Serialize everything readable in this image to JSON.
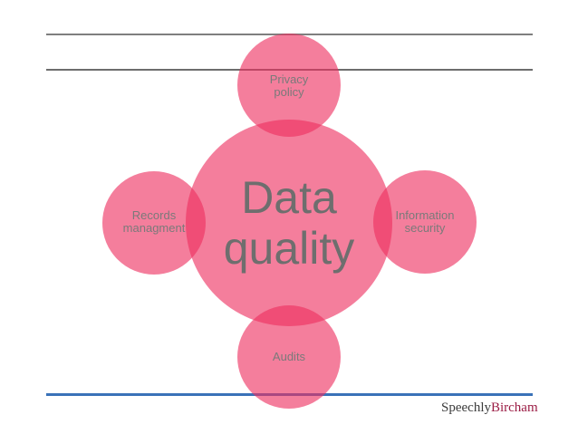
{
  "diagram": {
    "center": {
      "line1": "Data",
      "line2": "quality"
    },
    "nodes": {
      "top": {
        "line1": "Privacy",
        "line2": "policy"
      },
      "left": {
        "line1": "Records",
        "line2": "managment"
      },
      "right": {
        "line1": "Information",
        "line2": "security"
      },
      "bottom": {
        "line1": "Audits"
      }
    },
    "colors": {
      "circle_fill": "#EE2E5F",
      "rule_gray": "#7F7F7F",
      "rule_blue": "#3A72B8",
      "text_gray": "#7A7A7A"
    }
  },
  "logo": {
    "part1": "Speechly",
    "part2": "Bircham"
  }
}
